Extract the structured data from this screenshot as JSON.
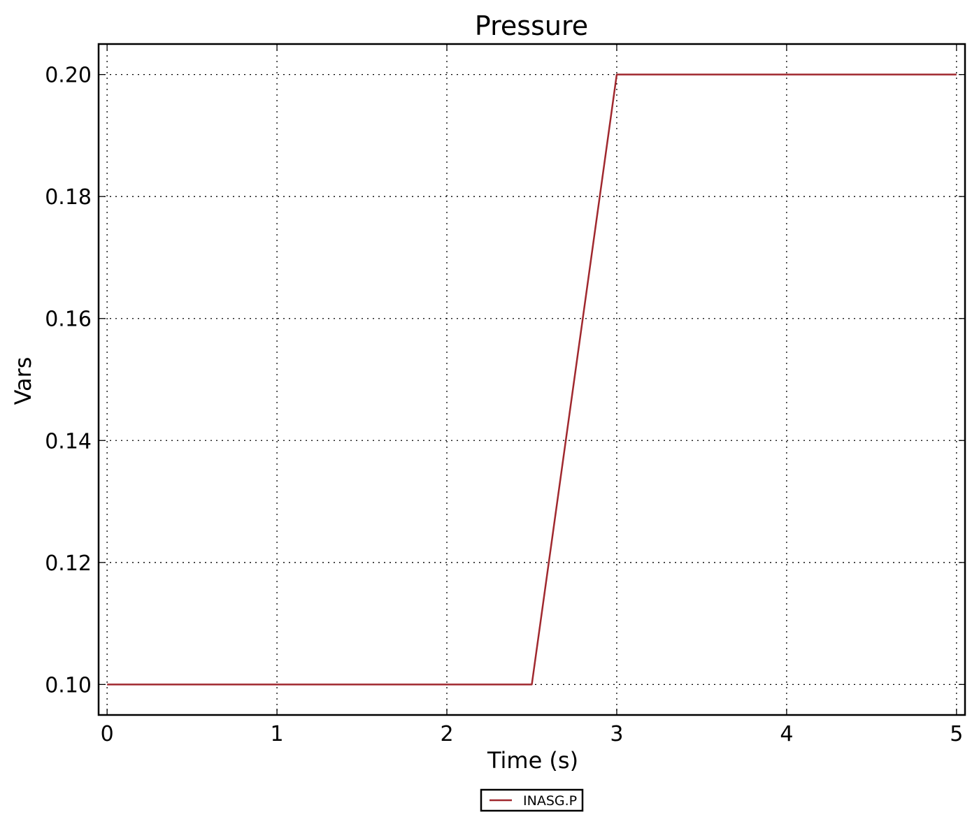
{
  "chart_data": {
    "type": "line",
    "title": "Pressure",
    "xlabel": "Time (s)",
    "ylabel": "Vars",
    "xlim": [
      -0.05,
      5.05
    ],
    "ylim": [
      0.095,
      0.205
    ],
    "x_ticks": [
      0,
      1,
      2,
      3,
      4,
      5
    ],
    "x_tick_labels": [
      "0",
      "1",
      "2",
      "3",
      "4",
      "5"
    ],
    "y_ticks": [
      0.1,
      0.12,
      0.14,
      0.16,
      0.18,
      0.2
    ],
    "y_tick_labels": [
      "0.10",
      "0.12",
      "0.14",
      "0.16",
      "0.18",
      "0.20"
    ],
    "grid": true,
    "legend_position": "bottom-center-outside",
    "series": [
      {
        "name": "INASG.P",
        "color": "#a0282e",
        "x": [
          0,
          2.5,
          3.0,
          5.0
        ],
        "y": [
          0.1,
          0.1,
          0.2,
          0.2
        ]
      }
    ]
  }
}
